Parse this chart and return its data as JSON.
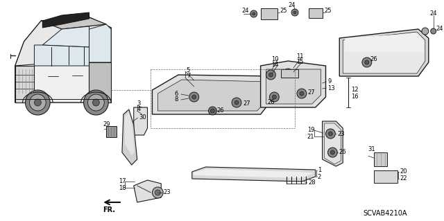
{
  "background_color": "#ffffff",
  "diagram_code": "SCVAB4210A",
  "fig_width": 6.4,
  "fig_height": 3.19,
  "dpi": 100,
  "line_color": "#1a1a1a",
  "text_color": "#000000",
  "gray_fill": "#d0d0d0",
  "dark_fill": "#555555",
  "mid_fill": "#999999"
}
